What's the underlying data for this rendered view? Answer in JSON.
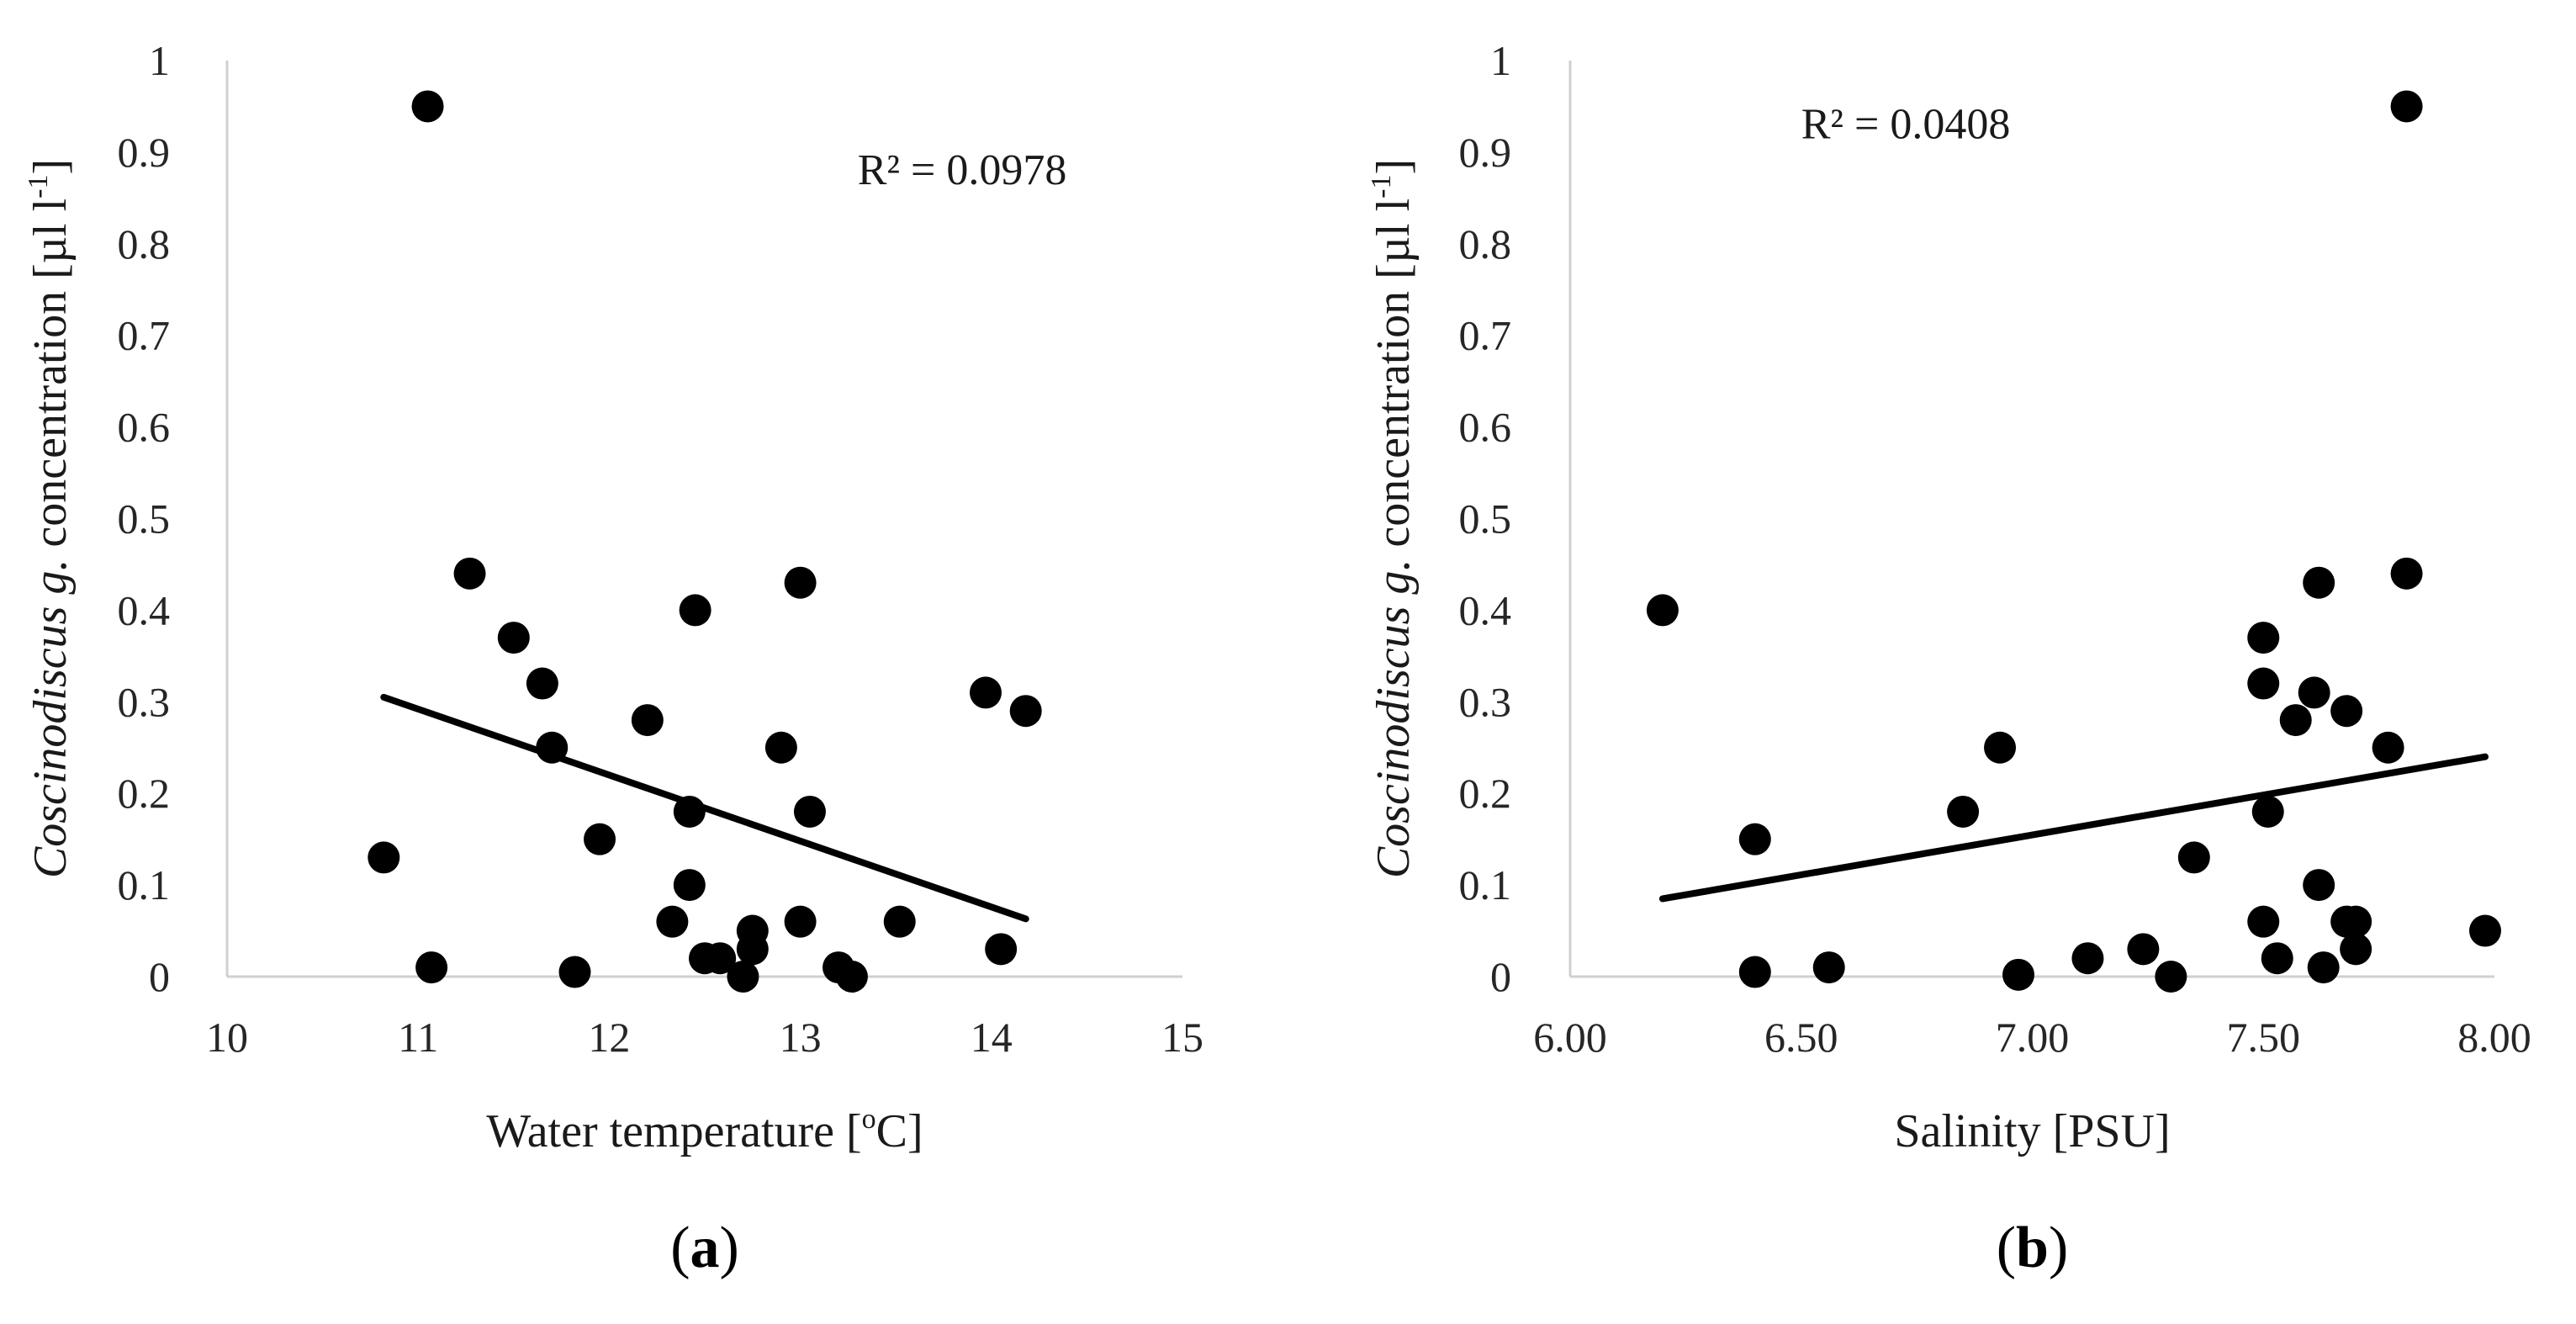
{
  "chart_data": [
    {
      "type": "scatter",
      "panel_label": {
        "open": "(",
        "letter": "a",
        "close": ")"
      },
      "xlabel": "Water temperature [°C]",
      "xlabel_parts": {
        "pre": "Water temperature [",
        "sup": "o",
        "post": "C]"
      },
      "ylabel": "Coscinodiscus g. concentration [µl l-1]",
      "ylabel_parts": {
        "italic": "Coscinodiscus g.",
        "rest": " concentration [µl l",
        "sup": "-1",
        "close": "]"
      },
      "xlim": [
        10,
        15
      ],
      "ylim": [
        0,
        1
      ],
      "xticks": [
        10,
        11,
        12,
        13,
        14,
        15
      ],
      "xtick_labels": [
        "10",
        "11",
        "12",
        "13",
        "14",
        "15"
      ],
      "yticks": [
        0,
        0.1,
        0.2,
        0.3,
        0.4,
        0.5,
        0.6,
        0.7,
        0.8,
        0.9,
        1
      ],
      "ytick_labels": [
        "0",
        "0.1",
        "0.2",
        "0.3",
        "0.4",
        "0.5",
        "0.6",
        "0.7",
        "0.8",
        "0.9",
        "1"
      ],
      "points": [
        [
          11.05,
          0.95
        ],
        [
          10.82,
          0.13
        ],
        [
          11.07,
          0.01
        ],
        [
          11.27,
          0.44
        ],
        [
          11.5,
          0.37
        ],
        [
          11.65,
          0.32
        ],
        [
          11.7,
          0.25
        ],
        [
          11.82,
          0.005
        ],
        [
          11.95,
          0.15
        ],
        [
          12.2,
          0.28
        ],
        [
          12.33,
          0.06
        ],
        [
          12.42,
          0.18
        ],
        [
          12.42,
          0.1
        ],
        [
          12.45,
          0.4
        ],
        [
          12.5,
          0.02
        ],
        [
          12.58,
          0.02
        ],
        [
          12.7,
          0.0
        ],
        [
          12.75,
          0.05
        ],
        [
          12.75,
          0.03
        ],
        [
          12.9,
          0.25
        ],
        [
          13.0,
          0.43
        ],
        [
          13.0,
          0.06
        ],
        [
          13.05,
          0.18
        ],
        [
          13.2,
          0.01
        ],
        [
          13.27,
          0.0
        ],
        [
          13.52,
          0.06
        ],
        [
          13.97,
          0.31
        ],
        [
          14.05,
          0.03
        ],
        [
          14.18,
          0.29
        ]
      ],
      "trendline": {
        "x": [
          10.82,
          14.18
        ],
        "y": [
          0.305,
          0.063
        ]
      },
      "annotation": {
        "r2_label": "R² = 0.0978",
        "x": 13.3,
        "y": 0.865
      }
    },
    {
      "type": "scatter",
      "panel_label": {
        "open": "(",
        "letter": "b",
        "close": ")"
      },
      "xlabel": "Salinity [PSU]",
      "ylabel": "Coscinodiscus g. concentration [µl l-1]",
      "ylabel_parts": {
        "italic": "Coscinodiscus g.",
        "rest": " concentration [µl l",
        "sup": "-1",
        "close": "]"
      },
      "xlim": [
        6.0,
        8.0
      ],
      "ylim": [
        0,
        1
      ],
      "xticks": [
        6.0,
        6.5,
        7.0,
        7.5,
        8.0
      ],
      "xtick_labels": [
        "6.00",
        "6.50",
        "7.00",
        "7.50",
        "8.00"
      ],
      "yticks": [
        0,
        0.1,
        0.2,
        0.3,
        0.4,
        0.5,
        0.6,
        0.7,
        0.8,
        0.9,
        1
      ],
      "ytick_labels": [
        "0",
        "0.1",
        "0.2",
        "0.3",
        "0.4",
        "0.5",
        "0.6",
        "0.7",
        "0.8",
        "0.9",
        "1"
      ],
      "points": [
        [
          6.2,
          0.4
        ],
        [
          6.4,
          0.15
        ],
        [
          6.4,
          0.005
        ],
        [
          6.56,
          0.01
        ],
        [
          6.85,
          0.18
        ],
        [
          6.93,
          0.25
        ],
        [
          6.97,
          0.002
        ],
        [
          7.12,
          0.02
        ],
        [
          7.24,
          0.03
        ],
        [
          7.3,
          0.0
        ],
        [
          7.35,
          0.13
        ],
        [
          7.5,
          0.37
        ],
        [
          7.5,
          0.32
        ],
        [
          7.5,
          0.06
        ],
        [
          7.51,
          0.18
        ],
        [
          7.53,
          0.02
        ],
        [
          7.57,
          0.28
        ],
        [
          7.61,
          0.31
        ],
        [
          7.62,
          0.43
        ],
        [
          7.62,
          0.1
        ],
        [
          7.63,
          0.01
        ],
        [
          7.68,
          0.29
        ],
        [
          7.68,
          0.06
        ],
        [
          7.7,
          0.06
        ],
        [
          7.7,
          0.03
        ],
        [
          7.77,
          0.25
        ],
        [
          7.81,
          0.95
        ],
        [
          7.81,
          0.44
        ],
        [
          7.98,
          0.05
        ]
      ],
      "trendline": {
        "x": [
          6.2,
          7.98
        ],
        "y": [
          0.085,
          0.24
        ]
      },
      "annotation": {
        "r2_label": "R² = 0.0408",
        "x": 6.5,
        "y": 0.915
      }
    }
  ]
}
